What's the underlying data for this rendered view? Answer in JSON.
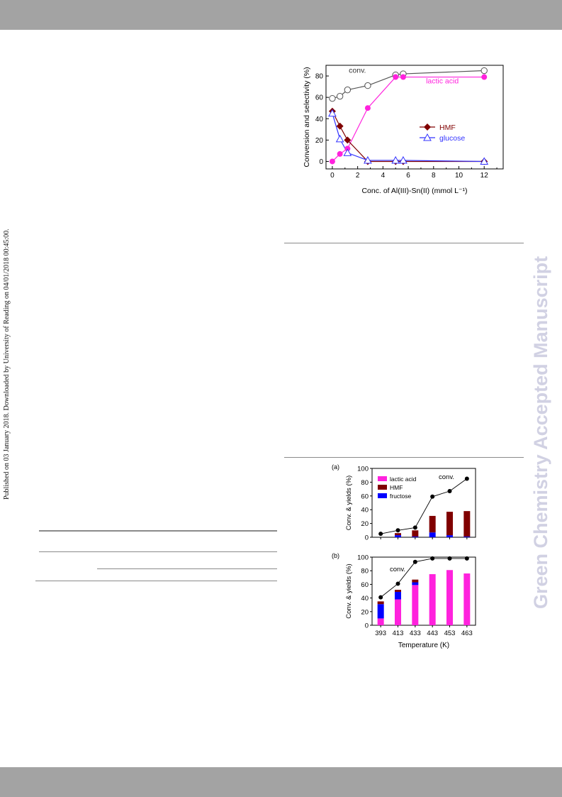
{
  "side_note": "Published on 03 January 2018. Downloaded by University of Reading on 04/01/2018 00:45:00.",
  "watermark": "Green Chemistry Accepted Manuscript",
  "colors": {
    "band": "#a3a3a3",
    "magenta": "#ff22dd",
    "maroon": "#800000",
    "blue": "#0000ff",
    "grey_line": "#555555"
  },
  "chart_data": [
    {
      "type": "line",
      "xlabel": "Conc. of Al(III)-Sn(II) (mmol L⁻¹)",
      "ylabel": "Conversion and selectivity (%)",
      "xlim": [
        -0.5,
        13.5
      ],
      "ylim": [
        -7,
        90
      ],
      "xticks": [
        "0",
        "2",
        "4",
        "6",
        "8",
        "10",
        "12"
      ],
      "yticks": [
        "0",
        "20",
        "40",
        "60",
        "80"
      ],
      "legend": [
        "HMF",
        "glucose"
      ],
      "legend_position": "center-right",
      "annotations": [
        "conv.",
        "lactic acid"
      ],
      "series": [
        {
          "name": "conv.",
          "color": "#555555",
          "marker": "open-circle",
          "x": [
            0,
            0.6,
            1.2,
            2.8,
            5,
            5.6,
            12
          ],
          "y": [
            59,
            61,
            67,
            71,
            81,
            82,
            85
          ]
        },
        {
          "name": "lactic acid",
          "color": "#ff22dd",
          "marker": "filled-circle",
          "x": [
            0,
            0.6,
            1.2,
            2.8,
            5,
            5.6,
            12
          ],
          "y": [
            0,
            7,
            12,
            50,
            79,
            79,
            79
          ]
        },
        {
          "name": "HMF",
          "color": "#800000",
          "marker": "diamond",
          "x": [
            0,
            0.6,
            1.2,
            2.8,
            5,
            5.6,
            12
          ],
          "y": [
            47,
            33,
            20,
            0,
            0,
            0,
            0
          ]
        },
        {
          "name": "glucose",
          "color": "#3333ff",
          "marker": "open-triangle",
          "x": [
            0,
            0.6,
            1.2,
            2.8,
            5,
            5.6,
            12
          ],
          "y": [
            45,
            21,
            8,
            1,
            1,
            1,
            0
          ]
        }
      ]
    },
    {
      "type": "bar",
      "panel": "(a)",
      "categories": [
        "393",
        "413",
        "433",
        "443",
        "453",
        "463"
      ],
      "ylabel": "Conv. & yields (%)",
      "ylim": [
        0,
        100
      ],
      "yticks": [
        "0",
        "20",
        "40",
        "60",
        "80",
        "100"
      ],
      "legend": [
        "lactic acid",
        "HMF",
        "fructose"
      ],
      "legend_position": "top-left",
      "annotation": "conv.",
      "series": [
        {
          "name": "lactic acid",
          "color": "#ff22dd",
          "values": [
            0,
            0,
            0,
            0,
            0,
            0
          ]
        },
        {
          "name": "fructose",
          "color": "#0000ff",
          "values": [
            0,
            3,
            1,
            7,
            3,
            1
          ]
        },
        {
          "name": "HMF",
          "color": "#800000",
          "values": [
            0,
            3,
            9,
            24,
            34,
            37
          ]
        }
      ],
      "conversion": [
        5,
        10,
        14,
        59,
        67,
        85
      ]
    },
    {
      "type": "bar",
      "panel": "(b)",
      "categories": [
        "393",
        "413",
        "433",
        "443",
        "453",
        "463"
      ],
      "xlabel": "Temperature (K)",
      "ylabel": "Conv. & yields (%)",
      "ylim": [
        0,
        100
      ],
      "yticks": [
        "0",
        "20",
        "40",
        "60",
        "80",
        "100"
      ],
      "annotation": "conv.",
      "series": [
        {
          "name": "lactic acid",
          "color": "#ff22dd",
          "values": [
            10,
            38,
            59,
            75,
            81,
            76
          ]
        },
        {
          "name": "fructose",
          "color": "#0000ff",
          "values": [
            21,
            11,
            4,
            0,
            0,
            0
          ]
        },
        {
          "name": "HMF",
          "color": "#800000",
          "values": [
            4,
            3,
            4,
            0,
            0,
            0
          ]
        }
      ],
      "conversion": [
        41,
        61,
        93,
        98,
        98,
        98
      ]
    }
  ]
}
